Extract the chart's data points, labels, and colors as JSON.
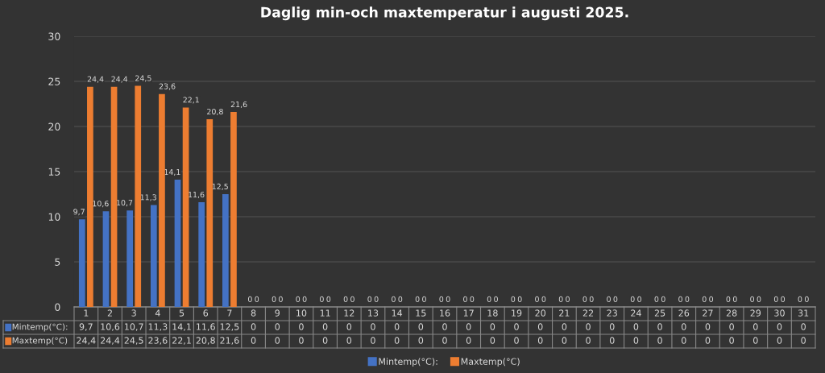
{
  "chart_data": {
    "type": "bar",
    "title": "Daglig min-och maxtemperatur i augusti 2025.",
    "categories": [
      "1",
      "2",
      "3",
      "4",
      "5",
      "6",
      "7",
      "8",
      "9",
      "10",
      "11",
      "12",
      "13",
      "14",
      "15",
      "16",
      "17",
      "18",
      "19",
      "20",
      "21",
      "22",
      "23",
      "24",
      "25",
      "26",
      "27",
      "28",
      "29",
      "30",
      "31"
    ],
    "series": [
      {
        "name": "Mintemp(°C):",
        "color": "#4472c4",
        "values": [
          9.7,
          10.6,
          10.7,
          11.3,
          14.1,
          11.6,
          12.5,
          0,
          0,
          0,
          0,
          0,
          0,
          0,
          0,
          0,
          0,
          0,
          0,
          0,
          0,
          0,
          0,
          0,
          0,
          0,
          0,
          0,
          0,
          0,
          0
        ],
        "value_labels": [
          "9,7",
          "10,6",
          "10,7",
          "11,3",
          "14,1",
          "11,6",
          "12,5",
          "0",
          "0",
          "0",
          "0",
          "0",
          "0",
          "0",
          "0",
          "0",
          "0",
          "0",
          "0",
          "0",
          "0",
          "0",
          "0",
          "0",
          "0",
          "0",
          "0",
          "0",
          "0",
          "0",
          "0"
        ]
      },
      {
        "name": "Maxtemp(°C)",
        "color": "#ed7d31",
        "values": [
          24.4,
          24.4,
          24.5,
          23.6,
          22.1,
          20.8,
          21.6,
          0,
          0,
          0,
          0,
          0,
          0,
          0,
          0,
          0,
          0,
          0,
          0,
          0,
          0,
          0,
          0,
          0,
          0,
          0,
          0,
          0,
          0,
          0,
          0
        ],
        "value_labels": [
          "24,4",
          "24,4",
          "24,5",
          "23,6",
          "22,1",
          "20,8",
          "21,6",
          "0",
          "0",
          "0",
          "0",
          "0",
          "0",
          "0",
          "0",
          "0",
          "0",
          "0",
          "0",
          "0",
          "0",
          "0",
          "0",
          "0",
          "0",
          "0",
          "0",
          "0",
          "0",
          "0",
          "0"
        ]
      }
    ],
    "ylim": [
      0,
      30
    ],
    "yticks": [
      0,
      5,
      10,
      15,
      20,
      25,
      30
    ],
    "grid": "y",
    "legend": "bottom"
  }
}
